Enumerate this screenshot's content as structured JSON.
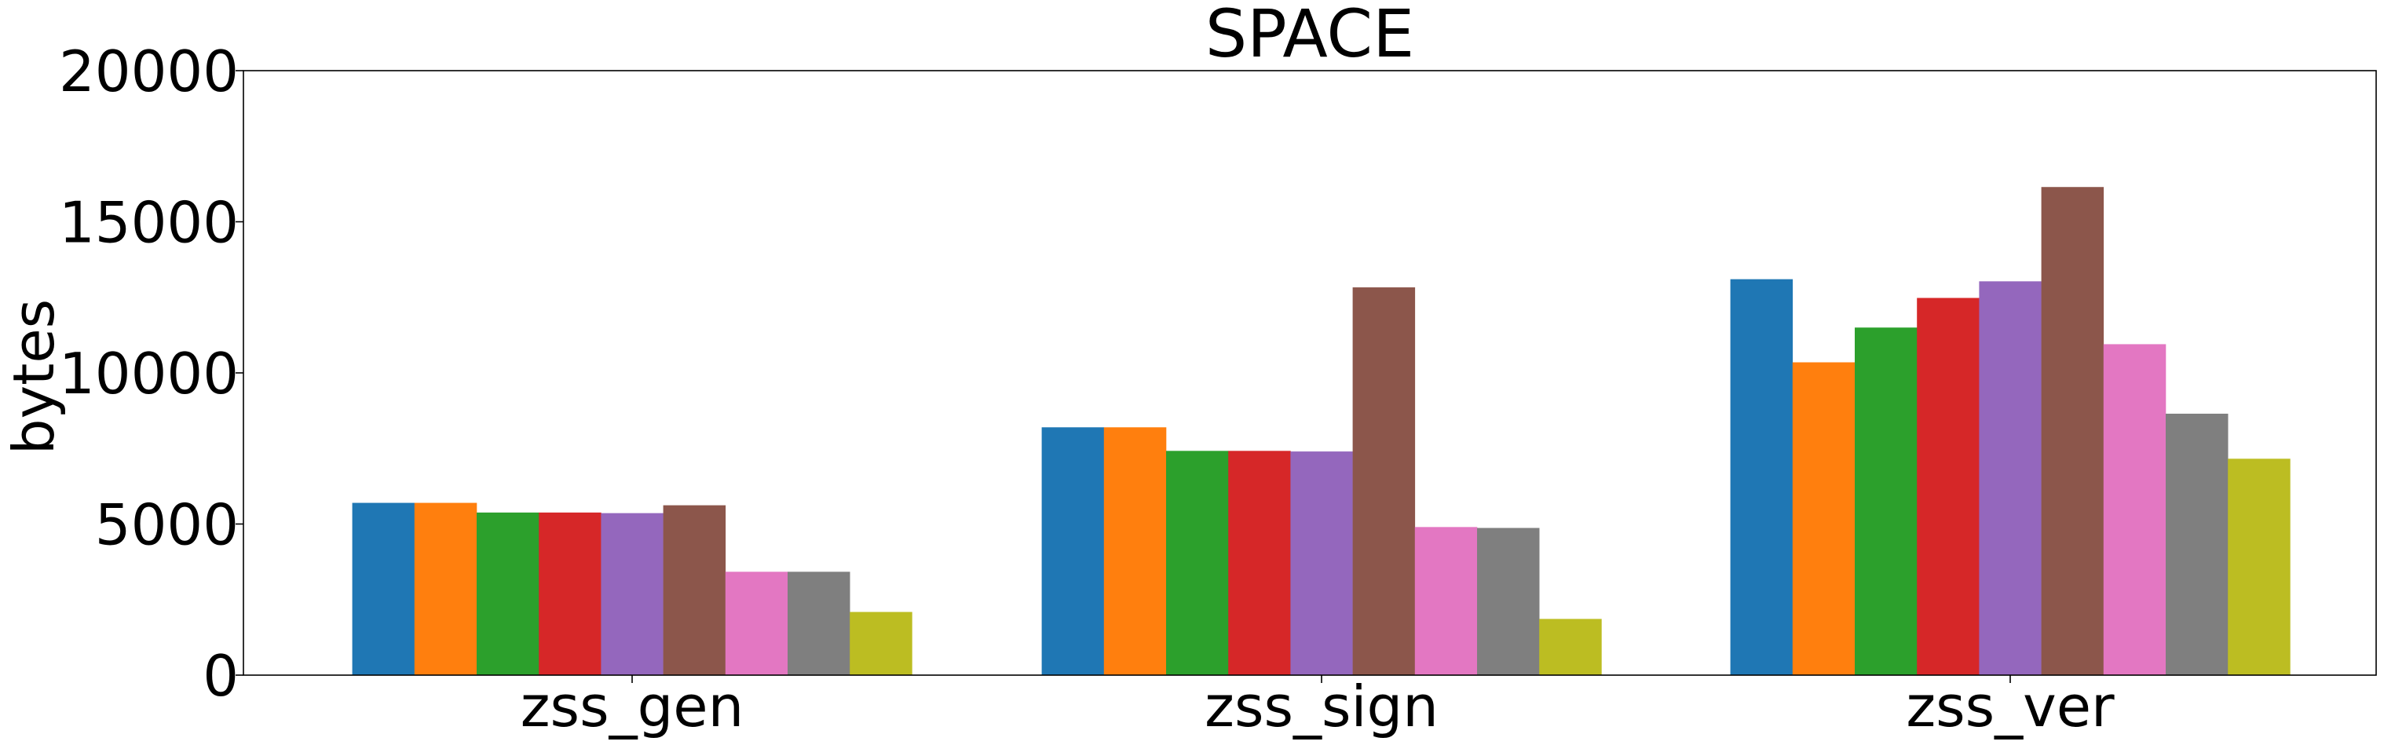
{
  "chart_data": {
    "type": "bar",
    "title": "SPACE",
    "xlabel": "",
    "ylabel": "bytes",
    "ylim": [
      0,
      20000
    ],
    "yticks": [
      0,
      5000,
      10000,
      15000,
      20000
    ],
    "grid": false,
    "legend": "none",
    "categories": [
      "zss_gen",
      "zss_sign",
      "zss_ver"
    ],
    "series": [
      {
        "color": "#1f77b4",
        "values": [
          5700,
          8200,
          13100
        ]
      },
      {
        "color": "#ff7f0e",
        "values": [
          5700,
          8200,
          10350
        ]
      },
      {
        "color": "#2ca02c",
        "values": [
          5380,
          7420,
          11500
        ]
      },
      {
        "color": "#d62728",
        "values": [
          5380,
          7420,
          12480
        ]
      },
      {
        "color": "#9467bd",
        "values": [
          5360,
          7400,
          13030
        ]
      },
      {
        "color": "#8c564b",
        "values": [
          5620,
          12830,
          16150
        ]
      },
      {
        "color": "#e377c2",
        "values": [
          3420,
          4900,
          10950
        ]
      },
      {
        "color": "#7f7f7f",
        "values": [
          3420,
          4870,
          8650
        ]
      },
      {
        "color": "#bcbd22",
        "values": [
          2090,
          1860,
          7160
        ]
      }
    ]
  }
}
